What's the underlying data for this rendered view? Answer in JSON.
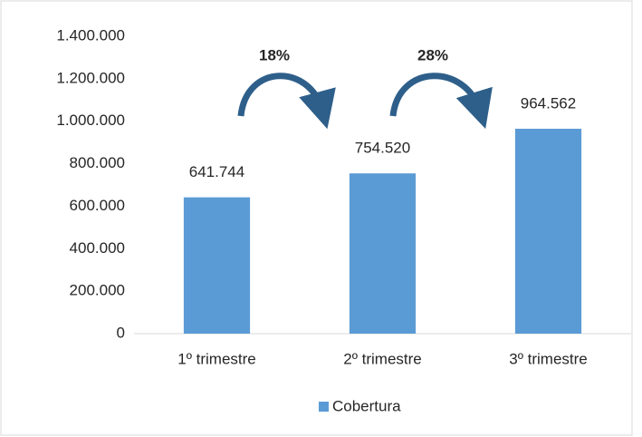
{
  "chart_data": {
    "type": "bar",
    "categories": [
      "1º trimestre",
      "2º trimestre",
      "3º trimestre"
    ],
    "series": [
      {
        "name": "Cobertura",
        "color": "#5b9bd5",
        "values": [
          641744,
          754520,
          964562
        ],
        "value_labels": [
          "641.744",
          "754.520",
          "964.562"
        ]
      }
    ],
    "ylim": [
      0,
      1400000
    ],
    "yticks": [
      0,
      {
        "value": 200000,
        "label": "200.000"
      },
      {
        "value": 400000,
        "label": "400.000"
      },
      {
        "value": 600000,
        "label": "600.000"
      },
      {
        "value": 800000,
        "label": "800.000"
      },
      {
        "value": 1000000,
        "label": "1.000.000"
      },
      {
        "value": 1200000,
        "label": "1.200.000"
      },
      {
        "value": 1400000,
        "label": "1.400.000"
      }
    ],
    "annotations": [
      "18%",
      "28%"
    ],
    "grid": false,
    "legend": "bottom"
  }
}
